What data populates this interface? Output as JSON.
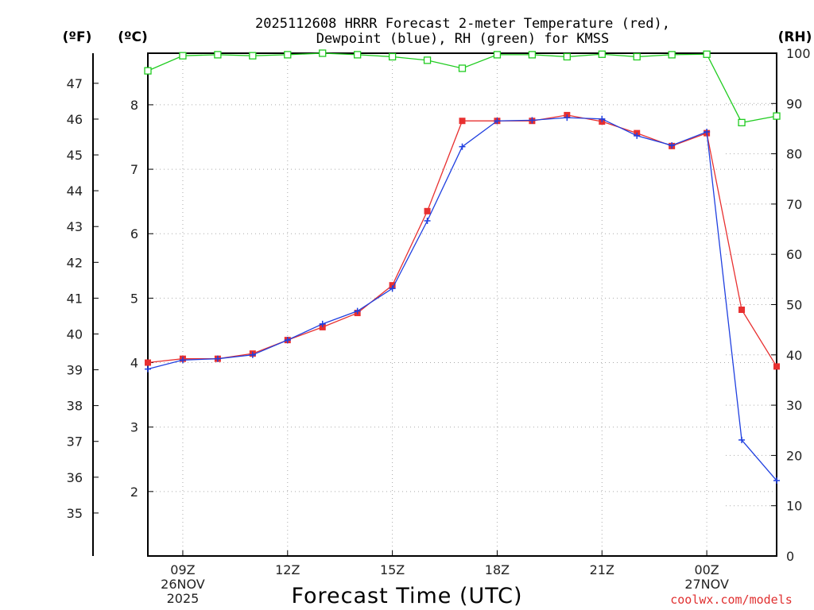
{
  "chart_data": {
    "type": "line",
    "title_line1": "2025112608 HRRR Forecast 2-meter Temperature (red),",
    "title_line2": "Dewpoint (blue), RH (green) for KMSS",
    "xlabel": "Forecast Time (UTC)",
    "left_outer_unit": "(ºF)",
    "left_inner_unit": "(ºC)",
    "right_unit": "(RH)",
    "credit": "coolwx.com/models",
    "x_hours": [
      8,
      9,
      10,
      11,
      12,
      13,
      14,
      15,
      16,
      17,
      18,
      19,
      20,
      21,
      22,
      23,
      24,
      25,
      26
    ],
    "xlim": [
      8,
      26
    ],
    "x_ticks": [
      {
        "hour": 9,
        "lines": [
          "09Z",
          "26NOV",
          "2025"
        ]
      },
      {
        "hour": 12,
        "lines": [
          "12Z"
        ]
      },
      {
        "hour": 15,
        "lines": [
          "15Z"
        ]
      },
      {
        "hour": 18,
        "lines": [
          "18Z"
        ]
      },
      {
        "hour": 21,
        "lines": [
          "21Z"
        ]
      },
      {
        "hour": 24,
        "lines": [
          "00Z",
          "27NOV"
        ]
      }
    ],
    "ylim_c": [
      1.0,
      8.8
    ],
    "c_ticks": [
      2,
      3,
      4,
      5,
      6,
      7,
      8
    ],
    "f_ticks": [
      35,
      36,
      37,
      38,
      39,
      40,
      41,
      42,
      43,
      44,
      45,
      46,
      47
    ],
    "rh_ticks": [
      0,
      10,
      20,
      30,
      40,
      50,
      60,
      70,
      80,
      90,
      100
    ],
    "ylim_rh": [
      0,
      100
    ],
    "series": [
      {
        "name": "Temperature",
        "unit": "C",
        "color": "#e83030",
        "values": [
          4.0,
          4.06,
          4.06,
          4.14,
          4.35,
          4.55,
          4.77,
          5.2,
          6.35,
          7.75,
          7.75,
          7.75,
          7.84,
          7.74,
          7.56,
          7.36,
          7.56,
          4.82,
          3.94
        ]
      },
      {
        "name": "Dewpoint",
        "unit": "C",
        "color": "#2040e0",
        "values": [
          3.9,
          4.04,
          4.06,
          4.12,
          4.35,
          4.6,
          4.8,
          5.15,
          6.2,
          7.35,
          7.75,
          7.76,
          7.8,
          7.78,
          7.52,
          7.37,
          7.58,
          2.8,
          2.17
        ]
      },
      {
        "name": "RH",
        "unit": "%",
        "color": "#20cc20",
        "values": [
          96.5,
          99.5,
          99.7,
          99.5,
          99.7,
          100,
          99.7,
          99.3,
          98.6,
          97.0,
          99.7,
          99.7,
          99.3,
          99.8,
          99.3,
          99.7,
          99.8,
          86.2,
          87.5
        ]
      }
    ]
  }
}
